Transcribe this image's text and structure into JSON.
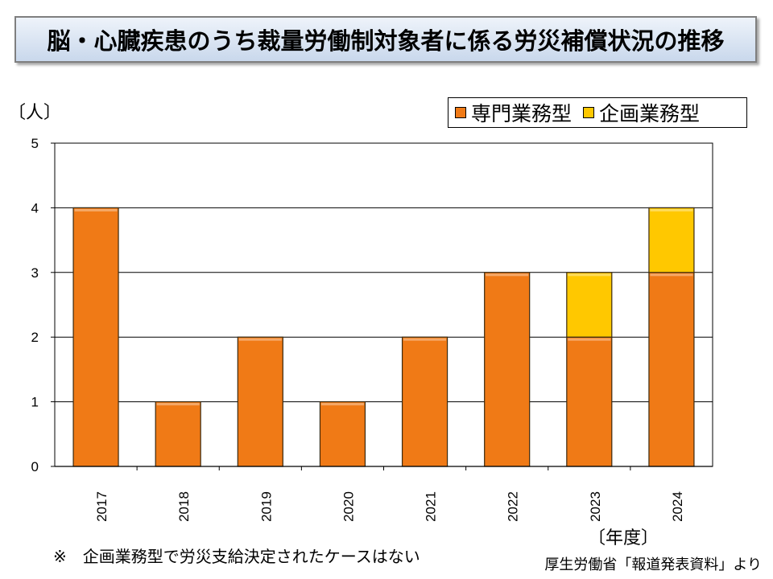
{
  "title": "脳・心臓疾患のうち裁量労働制対象者に係る労災補償状況の推移",
  "y_unit_label": "〔人〕",
  "x_unit_label": "〔年度〕",
  "note": "※　企画業務型で労災支給決定されたケースはない",
  "source": "厚生労働省「報道発表資料」より",
  "colors": {
    "series_1": "#f07a16",
    "series_2": "#ffc800"
  },
  "chart_data": {
    "type": "bar",
    "stacked": true,
    "title": "脳・心臓疾患のうち裁量労働制対象者に係る労災補償状況の推移",
    "xlabel": "〔年度〕",
    "ylabel": "〔人〕",
    "categories": [
      "2017",
      "2018",
      "2019",
      "2020",
      "2021",
      "2022",
      "2023",
      "2024"
    ],
    "series": [
      {
        "name": "専門業務型",
        "values": [
          4,
          1,
          2,
          1,
          2,
          3,
          2,
          3
        ]
      },
      {
        "name": "企画業務型",
        "values": [
          0,
          0,
          0,
          0,
          0,
          0,
          1,
          1
        ]
      }
    ],
    "ylim": [
      0,
      5
    ],
    "yticks": [
      0,
      1,
      2,
      3,
      4,
      5
    ],
    "legend": "top-right",
    "grid": true
  }
}
